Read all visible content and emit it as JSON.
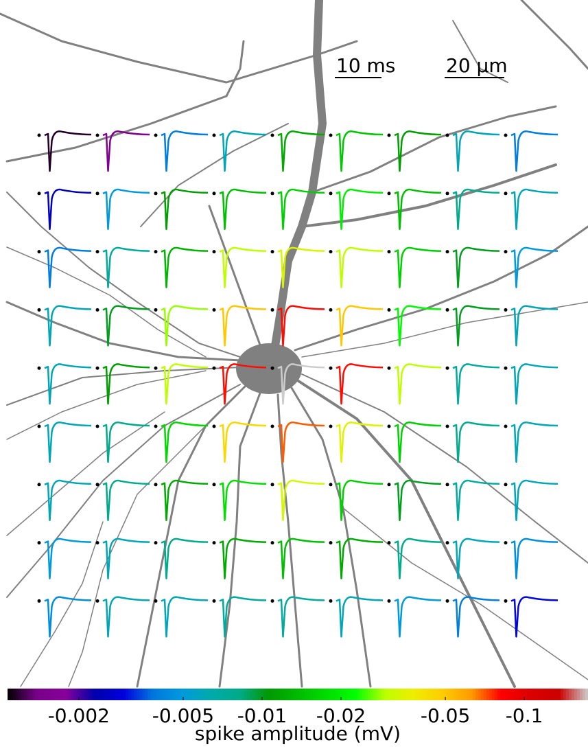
{
  "chart_data": {
    "type": "waveform_grid",
    "values": [
      [
        -0.00115,
        -0.0016,
        -0.004,
        -0.006,
        -0.012,
        -0.015,
        -0.011,
        -0.006,
        -0.004
      ],
      [
        -0.0025,
        -0.005,
        -0.011,
        -0.014,
        -0.016,
        -0.02,
        -0.014,
        -0.008,
        -0.006
      ],
      [
        -0.004,
        -0.007,
        -0.013,
        -0.03,
        -0.034,
        -0.03,
        -0.016,
        -0.01,
        -0.005
      ],
      [
        -0.006,
        -0.01,
        -0.028,
        -0.05,
        -0.08,
        -0.05,
        -0.022,
        -0.01,
        -0.006
      ],
      [
        -0.006,
        -0.011,
        -0.03,
        -0.08,
        -0.2,
        -0.08,
        -0.03,
        -0.007,
        -0.006
      ],
      [
        -0.006,
        -0.008,
        -0.017,
        -0.045,
        -0.07,
        -0.035,
        -0.016,
        -0.008,
        -0.006
      ],
      [
        -0.006,
        -0.008,
        -0.012,
        -0.018,
        -0.033,
        -0.016,
        -0.01,
        -0.007,
        -0.006
      ],
      [
        -0.005,
        -0.006,
        -0.008,
        -0.012,
        -0.014,
        -0.012,
        -0.008,
        -0.006,
        -0.0045
      ],
      [
        -0.0045,
        -0.006,
        -0.006,
        -0.007,
        -0.007,
        -0.006,
        -0.005,
        -0.004,
        -0.003
      ]
    ],
    "scalebars": [
      {
        "label": "10 ms"
      },
      {
        "label": "20 μm"
      }
    ],
    "colorbar": {
      "label": "spike amplitude (mV)",
      "colormap": "nipy_spectral",
      "scale": "log",
      "lim": [
        -0.00107,
        -0.175
      ],
      "ticks": [
        -0.002,
        -0.005,
        -0.01,
        -0.02,
        -0.05,
        -0.1
      ]
    }
  }
}
